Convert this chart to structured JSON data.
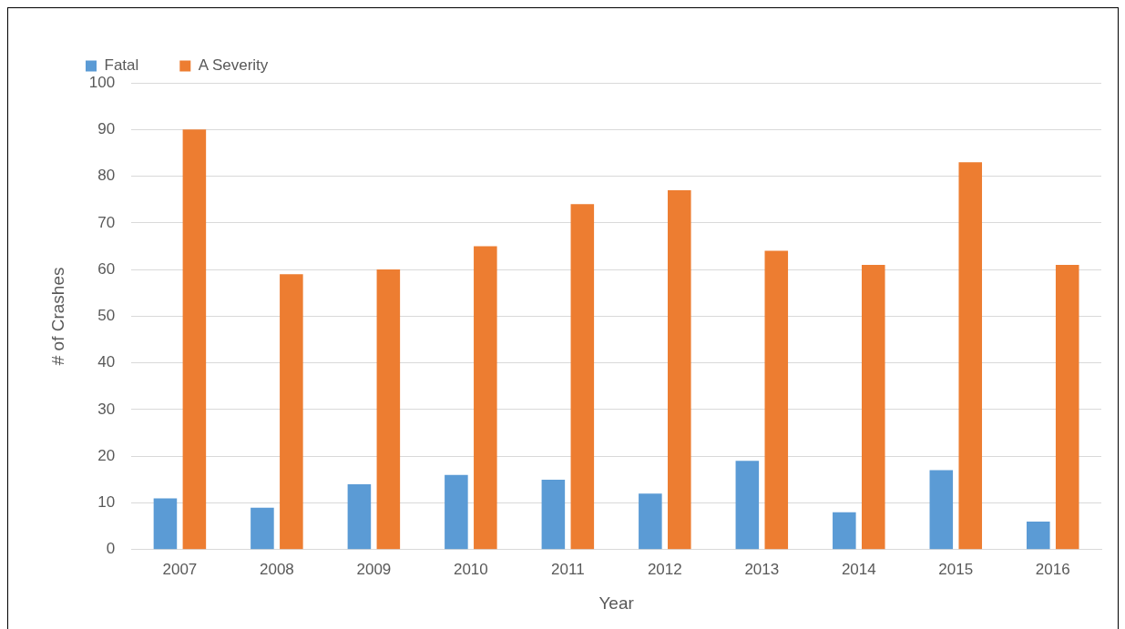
{
  "chart_data": {
    "type": "bar",
    "xlabel": "Year",
    "ylabel": "# of Crashes",
    "categories": [
      "2007",
      "2008",
      "2009",
      "2010",
      "2011",
      "2012",
      "2013",
      "2014",
      "2015",
      "2016"
    ],
    "series": [
      {
        "name": "Fatal",
        "color": "#5b9bd5",
        "values": [
          11,
          9,
          14,
          16,
          15,
          12,
          19,
          8,
          17,
          6
        ]
      },
      {
        "name": "A Severity",
        "color": "#ed7d31",
        "values": [
          90,
          59,
          60,
          65,
          74,
          77,
          64,
          61,
          83,
          61
        ]
      }
    ],
    "ylim": [
      0,
      100
    ],
    "yticks": [
      0,
      10,
      20,
      30,
      40,
      50,
      60,
      70,
      80,
      90,
      100
    ],
    "grid": "y",
    "legend": "top left"
  }
}
